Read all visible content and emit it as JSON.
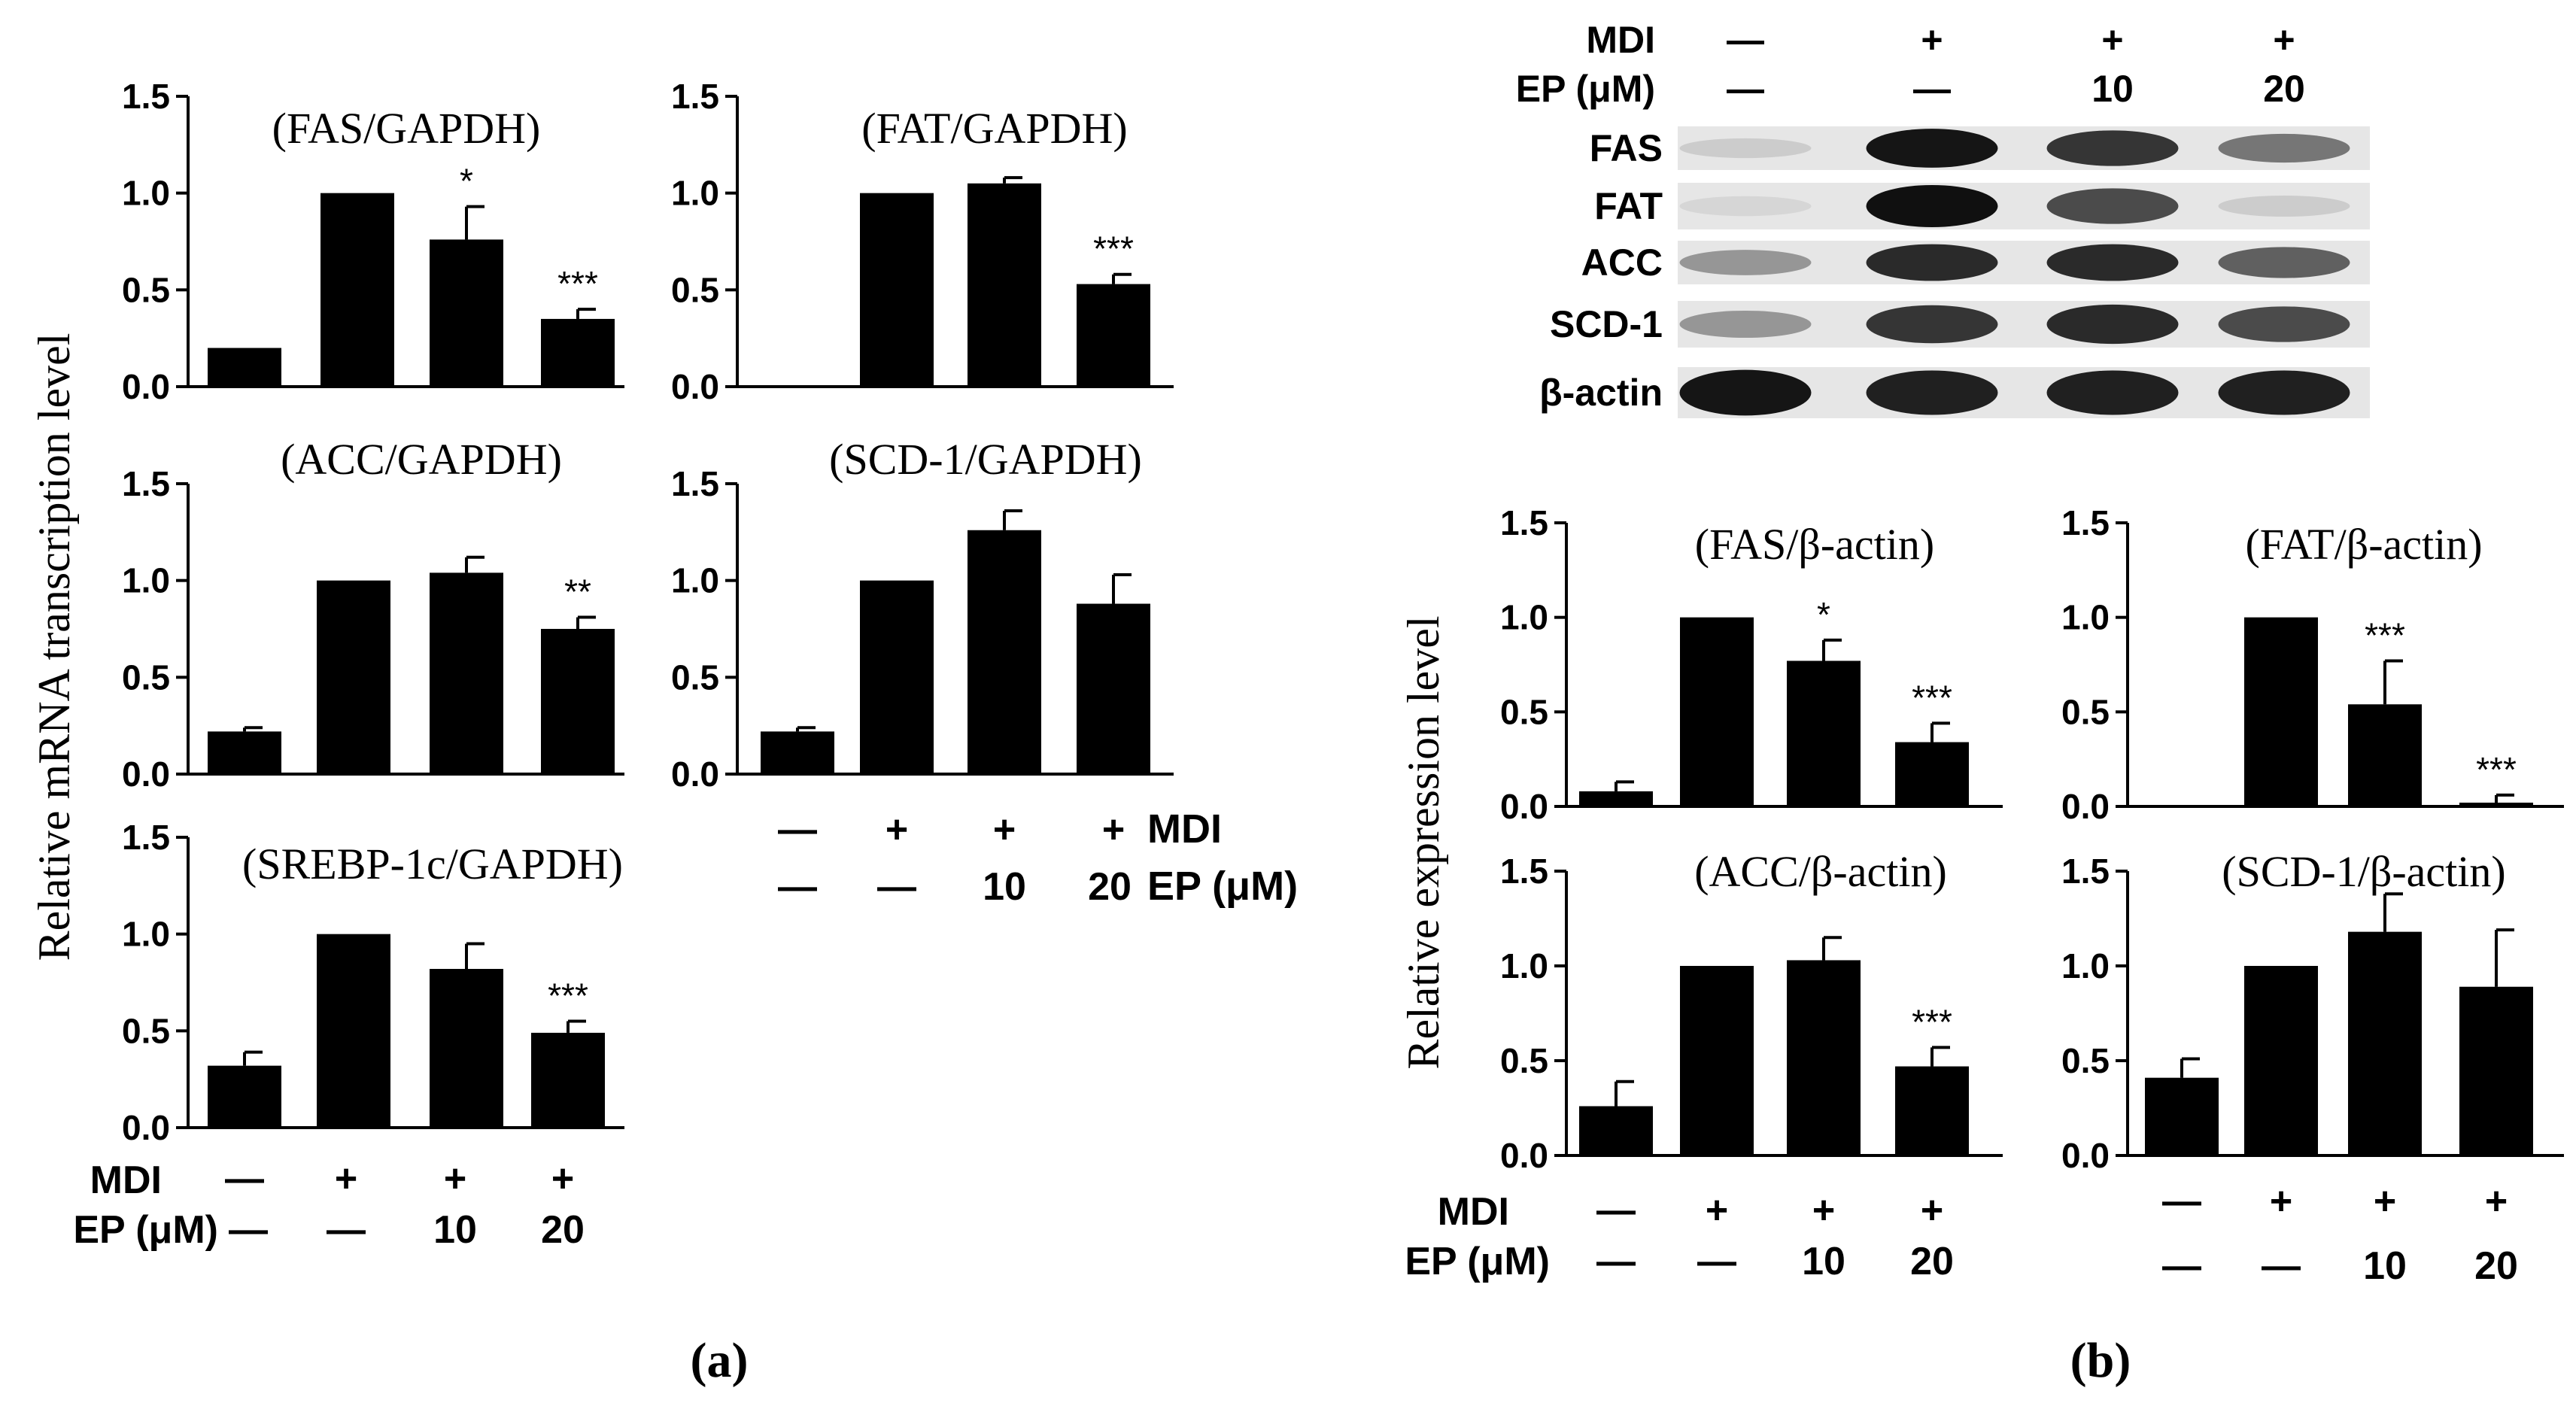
{
  "panel_labels": {
    "a": "(a)",
    "b": "(b)"
  },
  "axis_labels": {
    "mrna": "Relative mRNA transcription level",
    "protein": "Relative expression level"
  },
  "conditions": {
    "mdi_label": "MDI",
    "ep_label": "EP (μM)",
    "mdi_values": [
      "—",
      "+",
      "+",
      "+"
    ],
    "ep_values": [
      "—",
      "—",
      "10",
      "20"
    ]
  },
  "western_blot": {
    "header_mdi_label": "MDI",
    "header_ep_label": "EP (μM)",
    "header_mdi_values": [
      "—",
      "+",
      "+",
      "+"
    ],
    "header_ep_values": [
      "—",
      "—",
      "10",
      "20"
    ],
    "bands": [
      {
        "name": "FAS",
        "intensity": [
          0.1,
          0.95,
          0.8,
          0.5
        ]
      },
      {
        "name": "FAT",
        "intensity": [
          0.05,
          0.97,
          0.7,
          0.1
        ]
      },
      {
        "name": "ACC",
        "intensity": [
          0.35,
          0.85,
          0.85,
          0.6
        ]
      },
      {
        "name": "SCD-1",
        "intensity": [
          0.35,
          0.8,
          0.85,
          0.7
        ]
      },
      {
        "name": "β-actin",
        "intensity": [
          0.95,
          0.9,
          0.9,
          0.9
        ]
      }
    ]
  },
  "chart_data": [
    {
      "id": "fas-mrna",
      "type": "bar",
      "title": "(FAS/GAPDH)",
      "ylabel": "Relative mRNA transcription level",
      "ylim": [
        0,
        1.5
      ],
      "yticks": [
        "0.0",
        "0.5",
        "1.0",
        "1.5"
      ],
      "categories": [
        "—/—",
        "+/—",
        "+/10",
        "+/20"
      ],
      "values": [
        0.2,
        1.0,
        0.76,
        0.35
      ],
      "errors": [
        0,
        0,
        0.17,
        0.05
      ],
      "significance": [
        "",
        "",
        "*",
        "***"
      ]
    },
    {
      "id": "fat-mrna",
      "type": "bar",
      "title": "(FAT/GAPDH)",
      "ylabel": "Relative mRNA transcription level",
      "ylim": [
        0,
        1.5
      ],
      "yticks": [
        "0.0",
        "0.5",
        "1.0",
        "1.5"
      ],
      "categories": [
        "—/—",
        "+/—",
        "+/10",
        "+/20"
      ],
      "values": [
        0.0,
        1.0,
        1.05,
        0.53
      ],
      "errors": [
        0,
        0,
        0.03,
        0.05
      ],
      "significance": [
        "",
        "",
        "",
        "***"
      ]
    },
    {
      "id": "acc-mrna",
      "type": "bar",
      "title": "(ACC/GAPDH)",
      "ylabel": "Relative mRNA transcription level",
      "ylim": [
        0,
        1.5
      ],
      "yticks": [
        "0.0",
        "0.5",
        "1.0",
        "1.5"
      ],
      "categories": [
        "—/—",
        "+/—",
        "+/10",
        "+/20"
      ],
      "values": [
        0.22,
        1.0,
        1.04,
        0.75
      ],
      "errors": [
        0.02,
        0,
        0.08,
        0.06
      ],
      "significance": [
        "",
        "",
        "",
        "**"
      ]
    },
    {
      "id": "scd1-mrna",
      "type": "bar",
      "title": "(SCD-1/GAPDH)",
      "ylabel": "Relative mRNA transcription level",
      "ylim": [
        0,
        1.5
      ],
      "yticks": [
        "0.0",
        "0.5",
        "1.0",
        "1.5"
      ],
      "categories": [
        "—/—",
        "+/—",
        "+/10",
        "+/20"
      ],
      "values": [
        0.22,
        1.0,
        1.26,
        0.88
      ],
      "errors": [
        0.02,
        0,
        0.1,
        0.15
      ],
      "significance": [
        "",
        "",
        "",
        ""
      ]
    },
    {
      "id": "srebp-mrna",
      "type": "bar",
      "title": "(SREBP-1c/GAPDH)",
      "ylabel": "Relative mRNA transcription level",
      "ylim": [
        0,
        1.5
      ],
      "yticks": [
        "0.0",
        "0.5",
        "1.0",
        "1.5"
      ],
      "categories": [
        "—/—",
        "+/—",
        "+/10",
        "+/20"
      ],
      "values": [
        0.32,
        1.0,
        0.82,
        0.49
      ],
      "errors": [
        0.07,
        0,
        0.13,
        0.06
      ],
      "significance": [
        "",
        "",
        "",
        "***"
      ]
    },
    {
      "id": "fas-protein",
      "type": "bar",
      "title": "(FAS/β-actin)",
      "ylabel": "Relative expression level",
      "ylim": [
        0,
        1.5
      ],
      "yticks": [
        "0.0",
        "0.5",
        "1.0",
        "1.5"
      ],
      "categories": [
        "—/—",
        "+/—",
        "+/10",
        "+/20"
      ],
      "values": [
        0.08,
        1.0,
        0.77,
        0.34
      ],
      "errors": [
        0.05,
        0,
        0.11,
        0.1
      ],
      "significance": [
        "",
        "",
        "*",
        "***"
      ]
    },
    {
      "id": "fat-protein",
      "type": "bar",
      "title": "(FAT/β-actin)",
      "ylabel": "Relative expression level",
      "ylim": [
        0,
        1.5
      ],
      "yticks": [
        "0.0",
        "0.5",
        "1.0",
        "1.5"
      ],
      "categories": [
        "—/—",
        "+/—",
        "+/10",
        "+/20"
      ],
      "values": [
        0.0,
        1.0,
        0.54,
        0.02
      ],
      "errors": [
        0,
        0,
        0.23,
        0.04
      ],
      "significance": [
        "",
        "",
        "***",
        "***"
      ]
    },
    {
      "id": "acc-protein",
      "type": "bar",
      "title": "(ACC/β-actin)",
      "ylabel": "Relative expression level",
      "ylim": [
        0,
        1.5
      ],
      "yticks": [
        "0.0",
        "0.5",
        "1.0",
        "1.5"
      ],
      "categories": [
        "—/—",
        "+/—",
        "+/10",
        "+/20"
      ],
      "values": [
        0.26,
        1.0,
        1.03,
        0.47
      ],
      "errors": [
        0.13,
        0,
        0.12,
        0.1
      ],
      "significance": [
        "",
        "",
        "",
        "***"
      ]
    },
    {
      "id": "scd1-protein",
      "type": "bar",
      "title": "(SCD-1/β-actin)",
      "ylabel": "Relative expression level",
      "ylim": [
        0,
        1.5
      ],
      "yticks": [
        "0.0",
        "0.5",
        "1.0",
        "1.5"
      ],
      "categories": [
        "—/—",
        "+/—",
        "+/10",
        "+/20"
      ],
      "values": [
        0.41,
        1.0,
        1.18,
        0.89
      ],
      "errors": [
        0.1,
        0,
        0.2,
        0.3
      ],
      "significance": [
        "",
        "",
        "",
        ""
      ]
    }
  ]
}
